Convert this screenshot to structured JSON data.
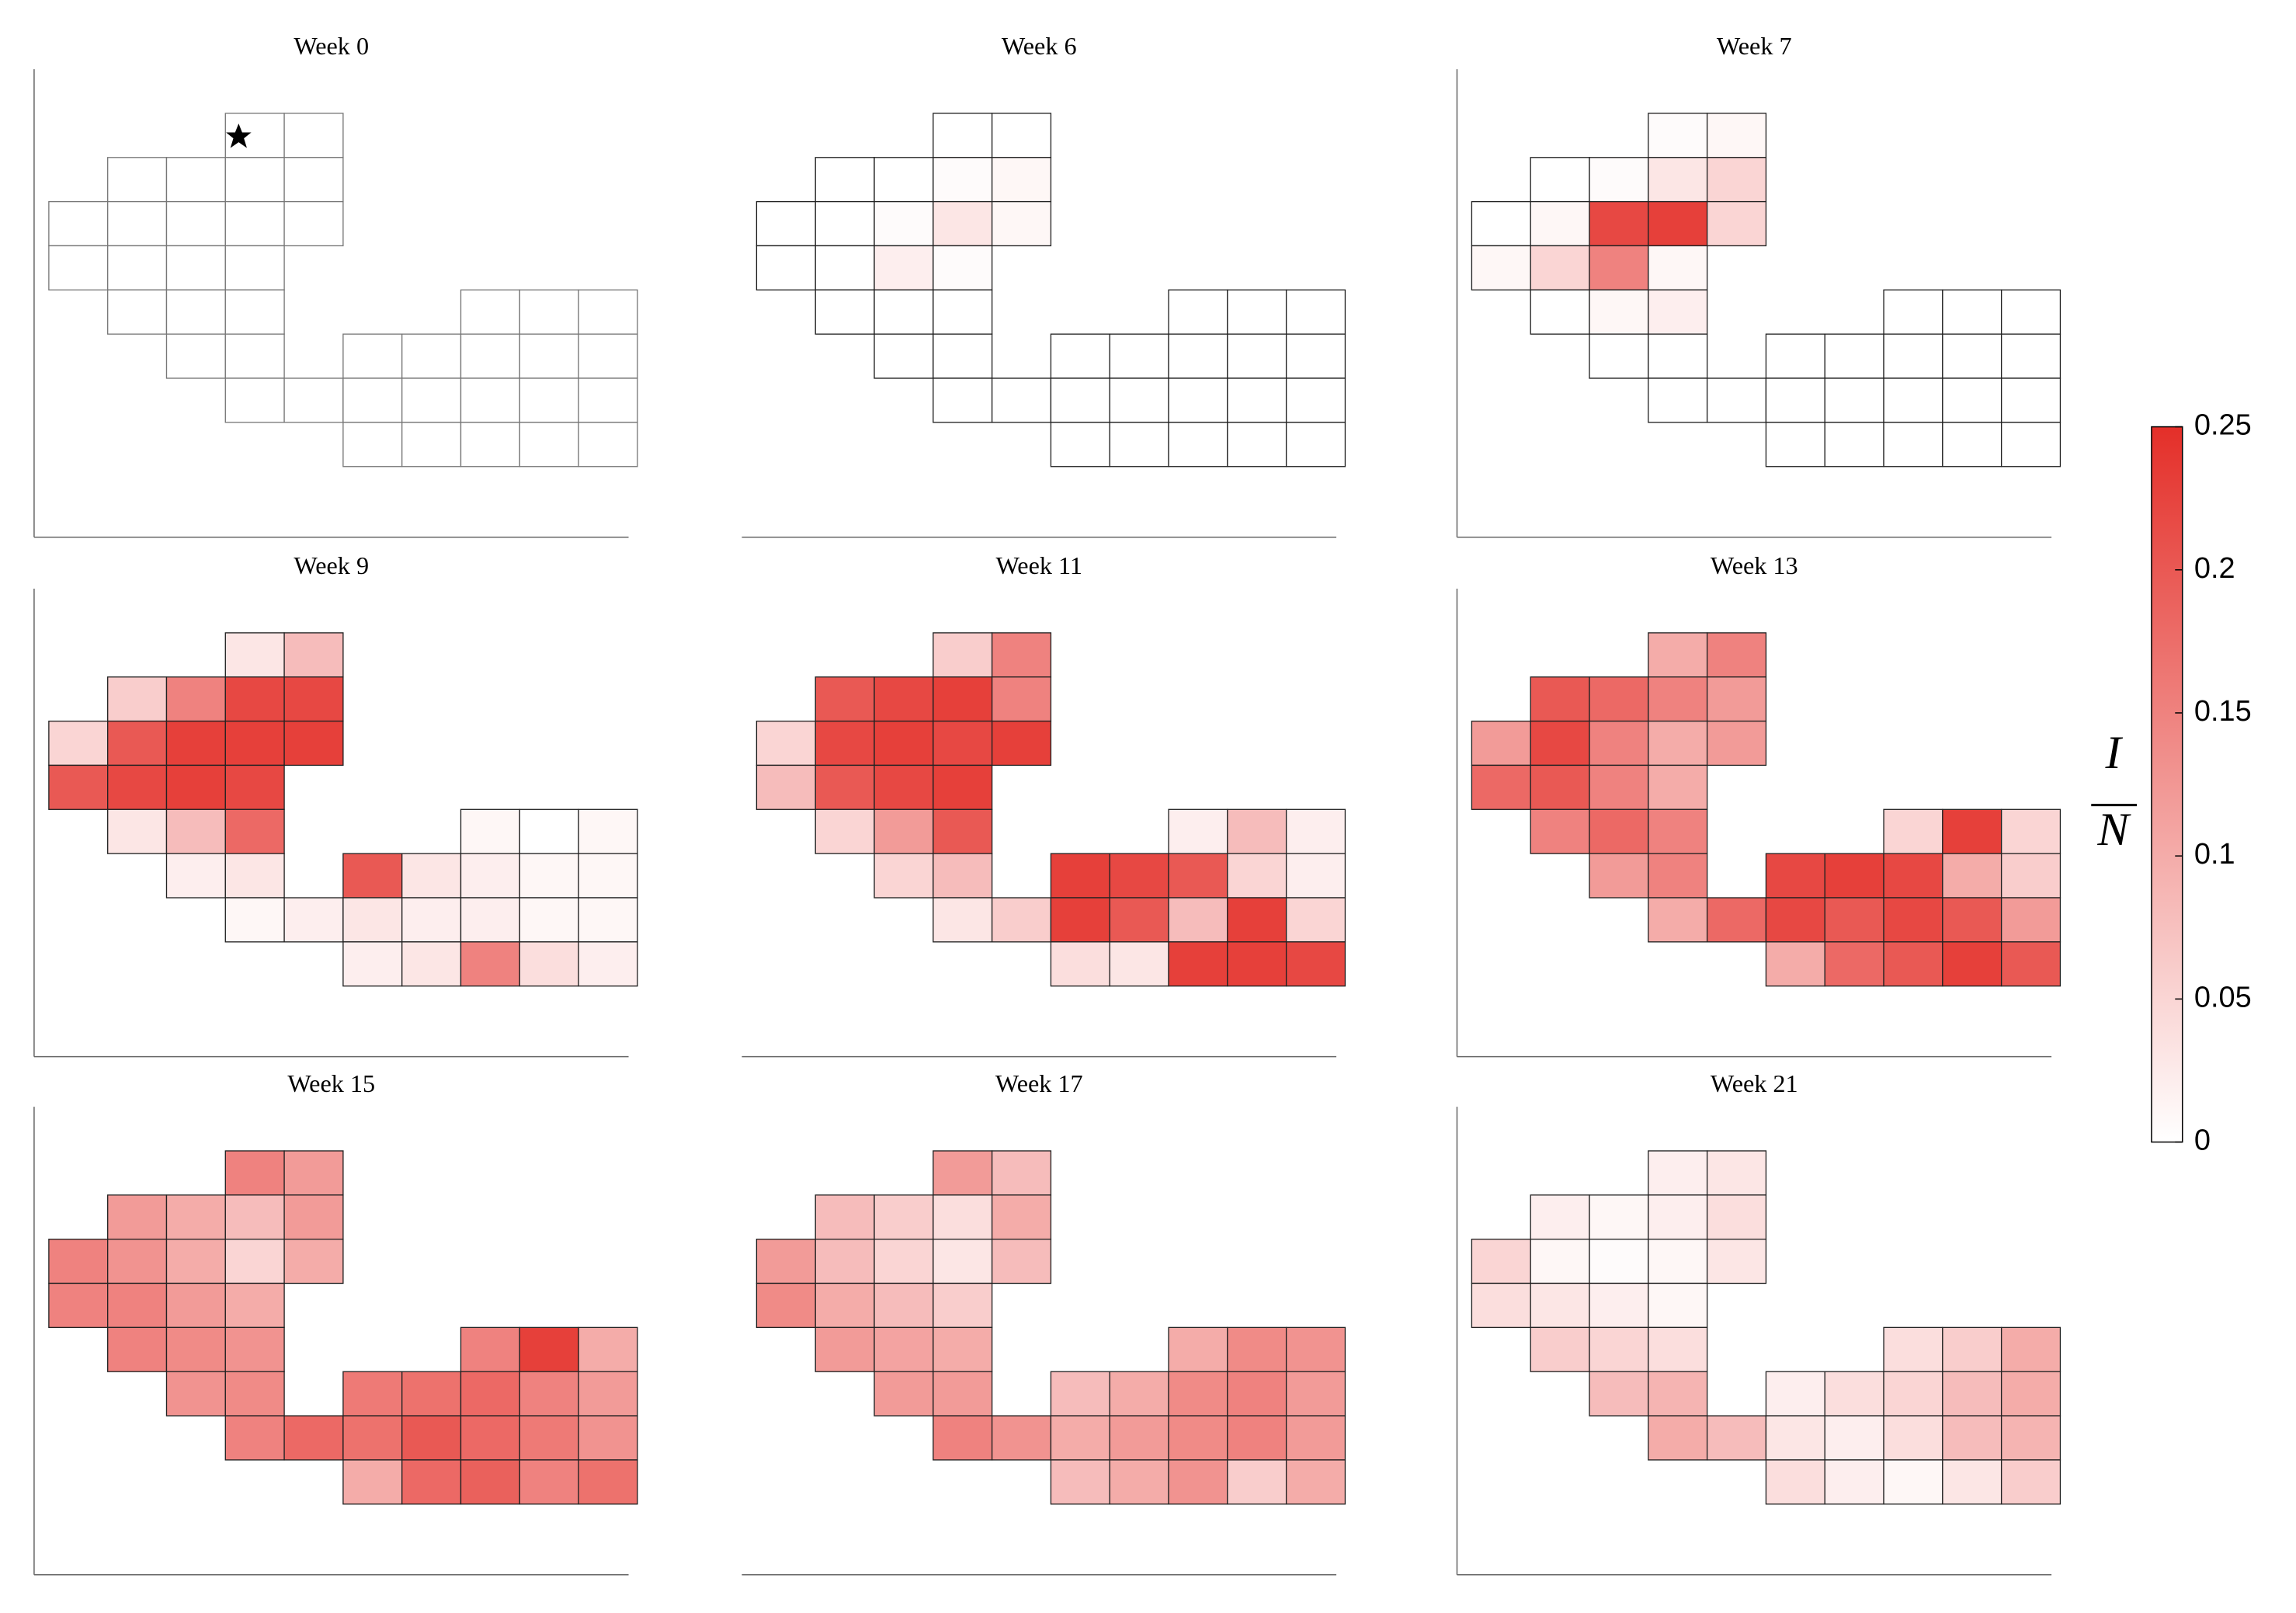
{
  "panels": [
    {
      "title": "Week 0",
      "values": [
        0,
        0,
        0,
        0,
        0,
        0,
        0,
        0,
        0,
        0,
        0,
        0,
        0,
        0,
        0,
        0,
        0,
        0,
        0,
        0,
        0,
        0,
        0,
        0,
        0,
        0,
        0,
        0,
        0,
        0,
        0,
        0,
        0,
        0,
        0,
        0,
        0,
        0,
        0,
        0
      ]
    },
    {
      "title": "Week 6",
      "values": [
        0,
        0,
        0,
        0,
        0.005,
        0.01,
        0,
        0,
        0.005,
        0.03,
        0.01,
        0,
        0,
        0.02,
        0.005,
        0,
        0,
        0,
        0,
        0,
        0,
        0,
        0,
        0,
        0,
        0,
        0,
        0,
        0,
        0,
        0,
        0,
        0,
        0,
        0,
        0,
        0,
        0,
        0,
        0
      ]
    },
    {
      "title": "Week 7",
      "values": [
        0.005,
        0.01,
        0,
        0.005,
        0.03,
        0.05,
        0,
        0.01,
        0.22,
        0.23,
        0.05,
        0.01,
        0.05,
        0.15,
        0.01,
        0,
        0.01,
        0.02,
        0,
        0,
        0,
        0,
        0,
        0,
        0,
        0,
        0,
        0,
        0,
        0,
        0,
        0,
        0,
        0,
        0,
        0,
        0,
        0,
        0,
        0
      ]
    },
    {
      "title": "Week 9",
      "values": [
        0.03,
        0.08,
        0.06,
        0.15,
        0.22,
        0.22,
        0.05,
        0.2,
        0.23,
        0.23,
        0.23,
        0.2,
        0.22,
        0.23,
        0.22,
        0.03,
        0.08,
        0.18,
        0.01,
        0,
        0.01,
        0.02,
        0.03,
        0.2,
        0.03,
        0.02,
        0.01,
        0.01,
        0.01,
        0.02,
        0.03,
        0.02,
        0.02,
        0.01,
        0.01,
        0.02,
        0.03,
        0.15,
        0.04,
        0.02
      ]
    },
    {
      "title": "Week 11",
      "values": [
        0.06,
        0.15,
        0.2,
        0.22,
        0.23,
        0.15,
        0.05,
        0.22,
        0.23,
        0.22,
        0.23,
        0.08,
        0.2,
        0.22,
        0.23,
        0.05,
        0.12,
        0.2,
        0.02,
        0.08,
        0.02,
        0.05,
        0.08,
        0.23,
        0.22,
        0.2,
        0.05,
        0.02,
        0.03,
        0.06,
        0.23,
        0.2,
        0.08,
        0.23,
        0.05,
        0.04,
        0.03,
        0.23,
        0.23,
        0.22
      ]
    },
    {
      "title": "Week 13",
      "values": [
        0.1,
        0.15,
        0.2,
        0.18,
        0.15,
        0.12,
        0.12,
        0.22,
        0.15,
        0.1,
        0.12,
        0.18,
        0.2,
        0.15,
        0.1,
        0.15,
        0.18,
        0.15,
        0.05,
        0.23,
        0.05,
        0.12,
        0.15,
        0.22,
        0.23,
        0.22,
        0.1,
        0.06,
        0.1,
        0.18,
        0.22,
        0.2,
        0.22,
        0.2,
        0.12,
        0.1,
        0.18,
        0.2,
        0.23,
        0.2
      ]
    },
    {
      "title": "Week 15",
      "values": [
        0.15,
        0.12,
        0.12,
        0.1,
        0.08,
        0.12,
        0.15,
        0.13,
        0.1,
        0.05,
        0.1,
        0.15,
        0.15,
        0.12,
        0.1,
        0.15,
        0.14,
        0.13,
        0.15,
        0.23,
        0.1,
        0.13,
        0.14,
        0.16,
        0.17,
        0.18,
        0.15,
        0.12,
        0.15,
        0.18,
        0.17,
        0.2,
        0.18,
        0.16,
        0.13,
        0.1,
        0.18,
        0.19,
        0.15,
        0.17
      ]
    },
    {
      "title": "Week 17",
      "values": [
        0.12,
        0.08,
        0.08,
        0.06,
        0.04,
        0.1,
        0.12,
        0.08,
        0.05,
        0.03,
        0.08,
        0.14,
        0.1,
        0.08,
        0.06,
        0.12,
        0.11,
        0.1,
        0.1,
        0.14,
        0.13,
        0.12,
        0.12,
        0.08,
        0.1,
        0.14,
        0.15,
        0.12,
        0.15,
        0.13,
        0.1,
        0.12,
        0.14,
        0.15,
        0.12,
        0.08,
        0.1,
        0.13,
        0.06,
        0.1
      ]
    },
    {
      "title": "Week 21",
      "values": [
        0.02,
        0.03,
        0.02,
        0.01,
        0.02,
        0.04,
        0.05,
        0.01,
        0.005,
        0.01,
        0.03,
        0.04,
        0.03,
        0.02,
        0.01,
        0.06,
        0.05,
        0.04,
        0.04,
        0.06,
        0.1,
        0.08,
        0.09,
        0.02,
        0.04,
        0.05,
        0.08,
        0.1,
        0.1,
        0.08,
        0.03,
        0.02,
        0.04,
        0.08,
        0.09,
        0.04,
        0.02,
        0.01,
        0.03,
        0.06
      ]
    }
  ],
  "colorbar": {
    "ylim": [
      0,
      0.25
    ],
    "yticks": [
      0,
      0.05,
      0.1,
      0.15,
      0.2,
      0.25
    ],
    "colors": [
      "#ffffff",
      "#e42f29"
    ],
    "label_numerator": "I",
    "label_denominator": "N"
  }
}
